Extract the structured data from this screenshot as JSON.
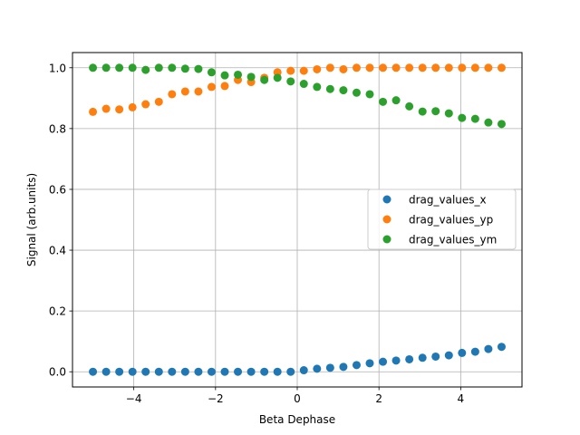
{
  "chart_data": {
    "type": "scatter",
    "title": "",
    "xlabel": "Beta Dephase",
    "ylabel": "Signal (arb.units)",
    "xlim": [
      -5.5,
      5.5
    ],
    "ylim": [
      -0.05,
      1.05
    ],
    "xticks": [
      -4,
      -2,
      0,
      2,
      4
    ],
    "xtick_labels": [
      "−4",
      "−2",
      "0",
      "2",
      "4"
    ],
    "yticks": [
      0.0,
      0.2,
      0.4,
      0.6,
      0.8,
      1.0
    ],
    "ytick_labels": [
      "0.0",
      "0.2",
      "0.4",
      "0.6",
      "0.8",
      "1.0"
    ],
    "grid": true,
    "legend_position": "center-right",
    "x": [
      -5.0,
      -4.677,
      -4.355,
      -4.032,
      -3.71,
      -3.387,
      -3.065,
      -2.742,
      -2.419,
      -2.097,
      -1.774,
      -1.452,
      -1.129,
      -0.806,
      -0.484,
      -0.161,
      0.161,
      0.484,
      0.806,
      1.129,
      1.452,
      1.774,
      2.097,
      2.419,
      2.742,
      3.065,
      3.387,
      3.71,
      4.032,
      4.355,
      4.677,
      5.0
    ],
    "series": [
      {
        "name": "drag_values_x",
        "color": "#1f77b4",
        "values": [
          0.0,
          0.0,
          0.0,
          0.0,
          0.0,
          0.0,
          0.0,
          0.0,
          0.0,
          0.0,
          0.0,
          0.0,
          0.0,
          0.0,
          0.0,
          0.0,
          0.005,
          0.01,
          0.013,
          0.016,
          0.022,
          0.028,
          0.033,
          0.037,
          0.041,
          0.046,
          0.05,
          0.054,
          0.062,
          0.066,
          0.075,
          0.082
        ]
      },
      {
        "name": "drag_values_yp",
        "color": "#ff7f0e",
        "values": [
          0.855,
          0.865,
          0.863,
          0.87,
          0.88,
          0.888,
          0.913,
          0.922,
          0.922,
          0.937,
          0.94,
          0.96,
          0.953,
          0.967,
          0.985,
          0.99,
          0.99,
          0.995,
          1.0,
          0.995,
          1.0,
          1.0,
          1.0,
          1.0,
          1.0,
          1.0,
          1.0,
          1.0,
          1.0,
          1.0,
          1.0,
          1.0
        ]
      },
      {
        "name": "drag_values_ym",
        "color": "#2ca02c",
        "values": [
          1.0,
          1.0,
          1.0,
          1.0,
          0.993,
          1.0,
          1.0,
          0.997,
          0.996,
          0.985,
          0.975,
          0.977,
          0.97,
          0.96,
          0.967,
          0.955,
          0.947,
          0.937,
          0.93,
          0.926,
          0.918,
          0.913,
          0.888,
          0.893,
          0.873,
          0.856,
          0.857,
          0.85,
          0.835,
          0.832,
          0.82,
          0.815
        ]
      }
    ]
  }
}
